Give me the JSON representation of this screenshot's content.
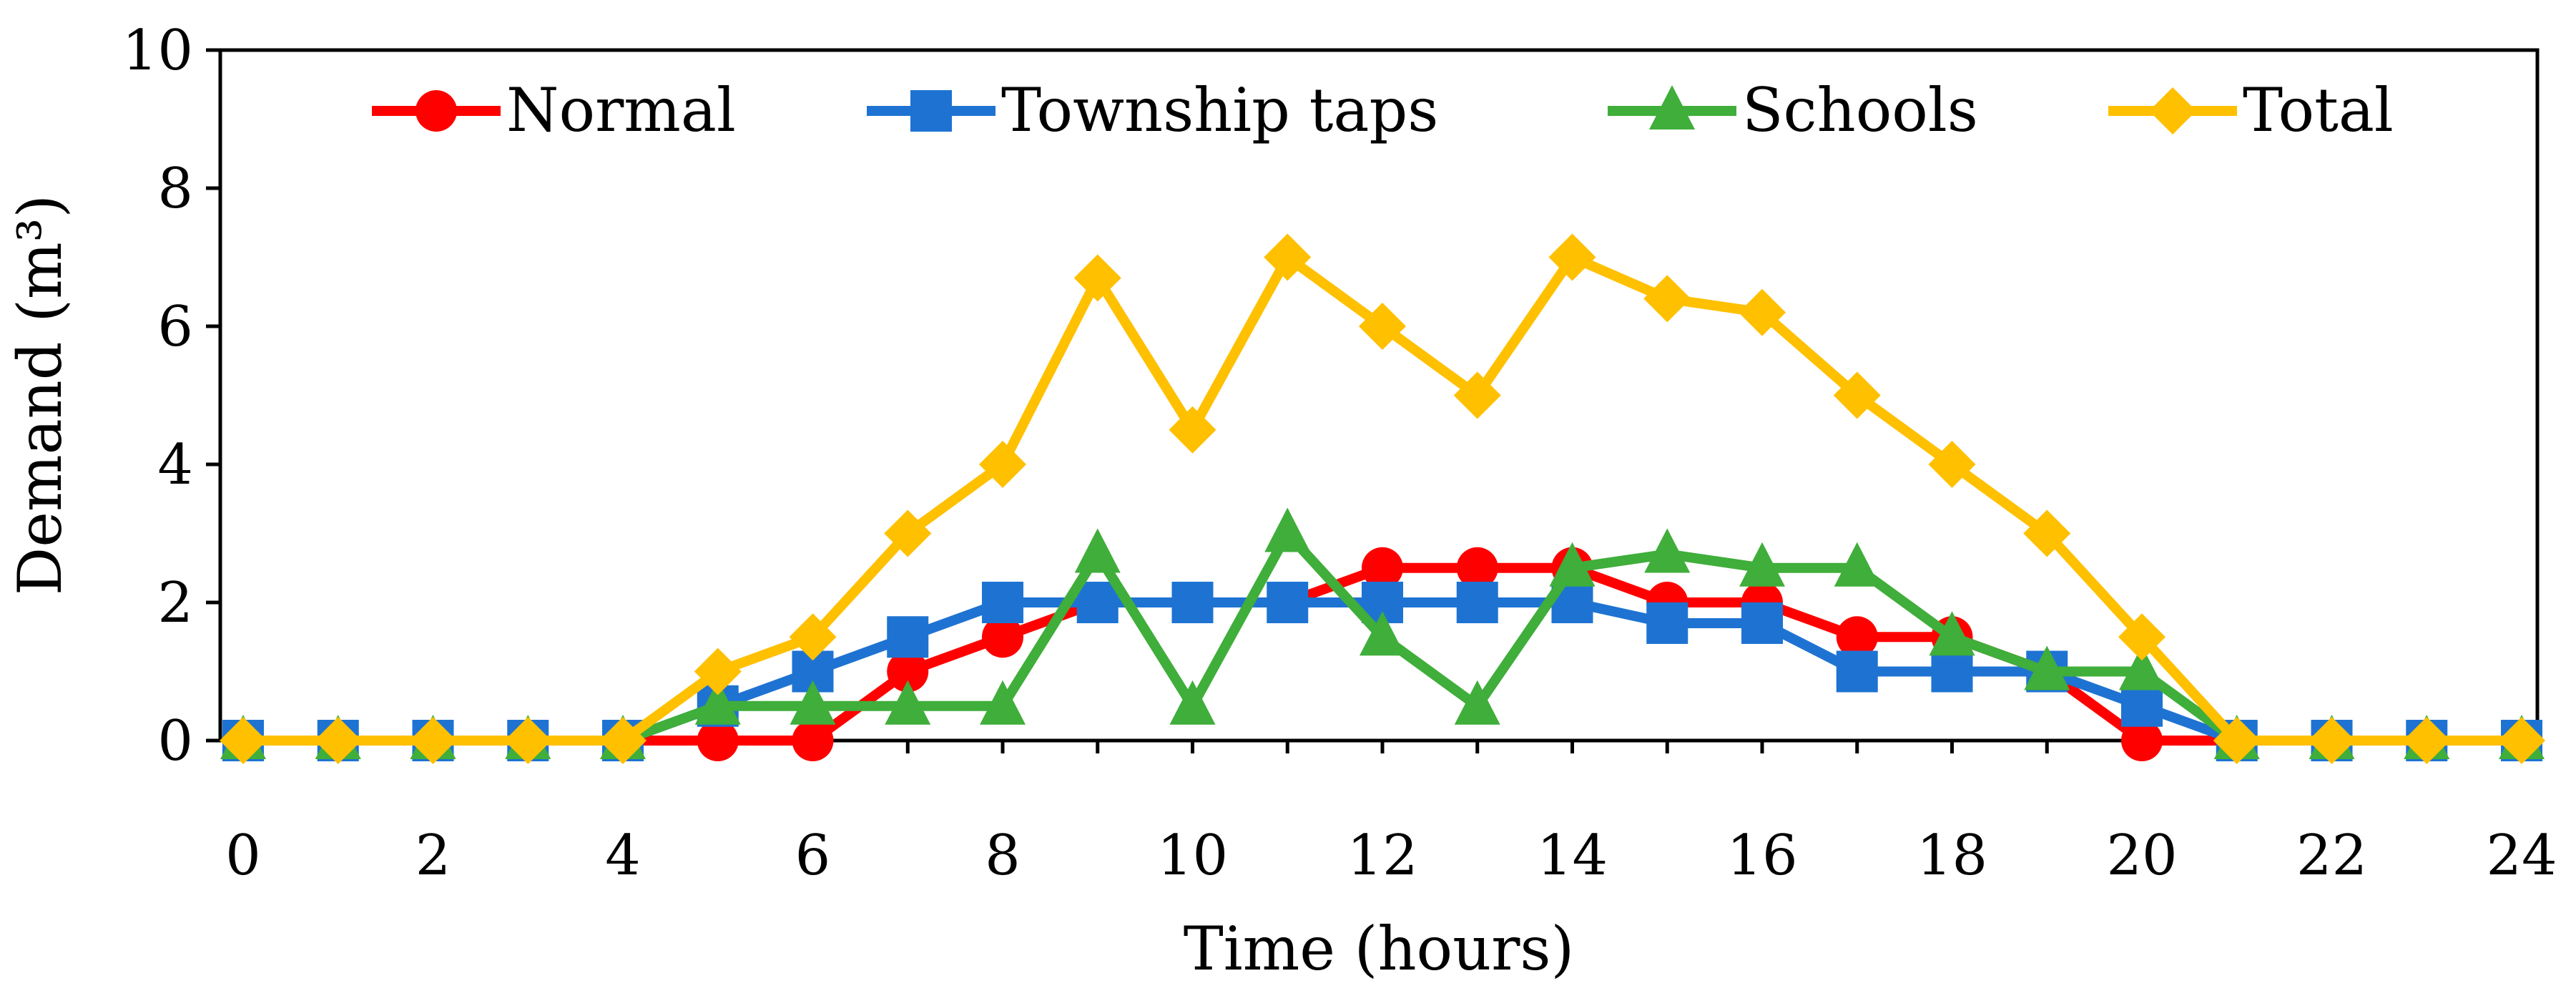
{
  "chart_data": {
    "type": "line",
    "title": "",
    "xlabel": "Time (hours)",
    "ylabel": "Demand (m³)",
    "xlim": [
      0,
      24
    ],
    "ylim": [
      0,
      10
    ],
    "xticks": [
      "0",
      "2",
      "4",
      "6",
      "8",
      "10",
      "12",
      "14",
      "16",
      "18",
      "20",
      "22",
      "24"
    ],
    "yticks": [
      "0",
      "2",
      "4",
      "6",
      "8",
      "10"
    ],
    "grid": false,
    "legend_position": "top",
    "x": [
      0,
      1,
      2,
      3,
      4,
      5,
      6,
      7,
      8,
      9,
      10,
      11,
      12,
      13,
      14,
      15,
      16,
      17,
      18,
      19,
      20,
      21,
      22,
      23,
      24
    ],
    "series": [
      {
        "name": "Normal",
        "color": "#ff0000",
        "marker": "circle",
        "values": [
          0,
          0,
          0,
          0,
          0,
          0,
          0,
          1,
          1.5,
          2,
          2,
          2,
          2.5,
          2.5,
          2.5,
          2,
          2,
          1.5,
          1.5,
          1,
          0,
          0,
          0,
          0,
          0
        ]
      },
      {
        "name": "Township taps",
        "color": "#1e73d2",
        "marker": "square",
        "values": [
          0,
          0,
          0,
          0,
          0,
          0.5,
          1,
          1.5,
          2,
          2,
          2,
          2,
          2,
          2,
          2,
          1.7,
          1.7,
          1,
          1,
          1,
          0.5,
          0,
          0,
          0,
          0
        ]
      },
      {
        "name": "Schools",
        "color": "#3fae3a",
        "marker": "triangle",
        "values": [
          0,
          0,
          0,
          0,
          0,
          0.5,
          0.5,
          0.5,
          0.5,
          2.7,
          0.5,
          3,
          1.5,
          0.5,
          2.5,
          2.7,
          2.5,
          2.5,
          1.5,
          1,
          1,
          0,
          0,
          0,
          0
        ]
      },
      {
        "name": "Total",
        "color": "#ffc000",
        "marker": "diamond",
        "values": [
          0,
          0,
          0,
          0,
          0,
          1,
          1.5,
          3,
          4,
          6.7,
          4.5,
          7,
          6,
          5,
          7,
          6.4,
          6.2,
          5,
          4,
          3,
          1.5,
          0,
          0,
          0,
          0
        ]
      }
    ]
  }
}
